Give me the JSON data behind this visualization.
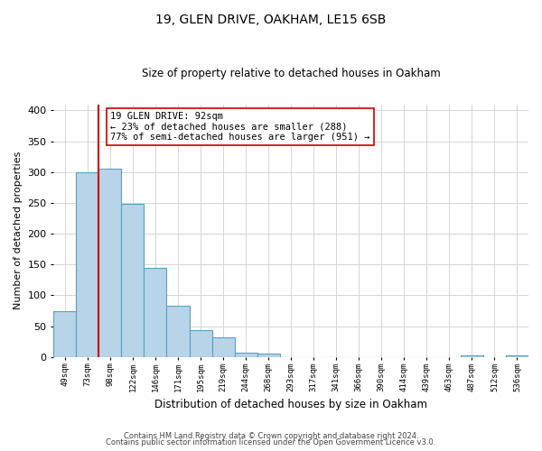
{
  "title": "19, GLEN DRIVE, OAKHAM, LE15 6SB",
  "subtitle": "Size of property relative to detached houses in Oakham",
  "xlabel": "Distribution of detached houses by size in Oakham",
  "ylabel": "Number of detached properties",
  "bin_labels": [
    "49sqm",
    "73sqm",
    "98sqm",
    "122sqm",
    "146sqm",
    "171sqm",
    "195sqm",
    "219sqm",
    "244sqm",
    "268sqm",
    "293sqm",
    "317sqm",
    "341sqm",
    "366sqm",
    "390sqm",
    "414sqm",
    "439sqm",
    "463sqm",
    "487sqm",
    "512sqm",
    "536sqm"
  ],
  "bar_heights": [
    75,
    300,
    305,
    248,
    144,
    83,
    44,
    32,
    7,
    6,
    0,
    0,
    0,
    0,
    0,
    0,
    0,
    0,
    2,
    0,
    2
  ],
  "bar_color": "#b8d4e8",
  "bar_edge_color": "#5a9fc0",
  "vline_color": "#cc0000",
  "annotation_text": "19 GLEN DRIVE: 92sqm\n← 23% of detached houses are smaller (288)\n77% of semi-detached houses are larger (951) →",
  "annotation_box_color": "#ffffff",
  "annotation_box_edge": "#cc0000",
  "ylim": [
    0,
    410
  ],
  "yticks": [
    0,
    50,
    100,
    150,
    200,
    250,
    300,
    350,
    400
  ],
  "footer_line1": "Contains HM Land Registry data © Crown copyright and database right 2024.",
  "footer_line2": "Contains public sector information licensed under the Open Government Licence v3.0.",
  "bg_color": "#ffffff",
  "grid_color": "#d0d0d0"
}
